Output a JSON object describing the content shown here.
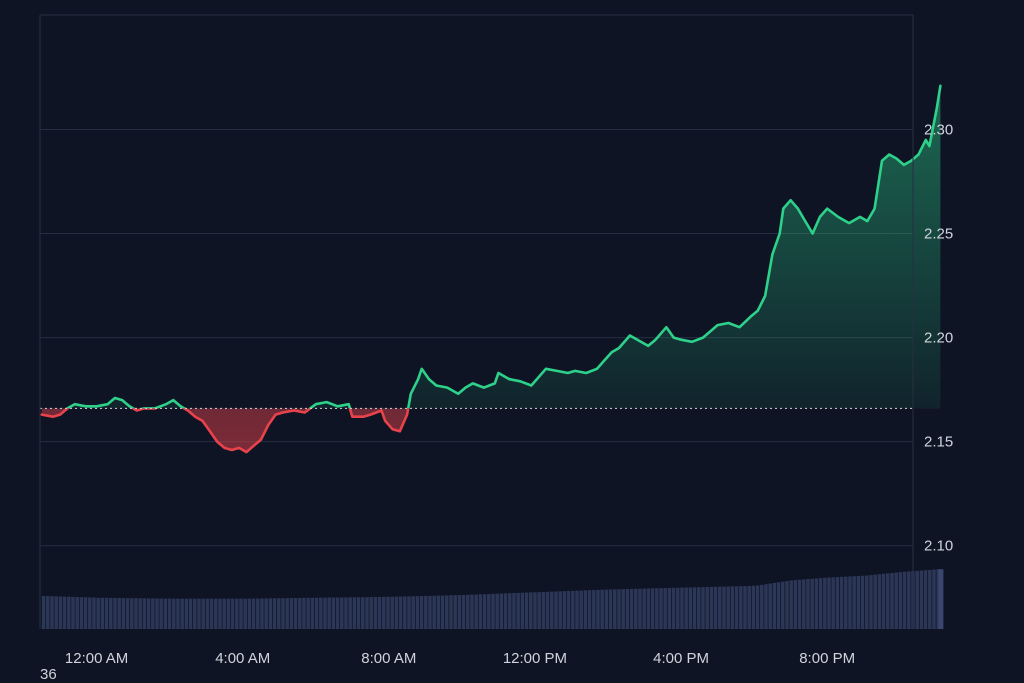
{
  "chart_data": {
    "type": "line",
    "title": "",
    "xlabel": "",
    "ylabel": "",
    "ylim": [
      2.06,
      2.355
    ],
    "y_ticks": [
      2.1,
      2.15,
      2.2,
      2.25,
      2.3
    ],
    "y_tick_labels": [
      "2.10",
      "2.15",
      "2.20",
      "2.25",
      "2.30"
    ],
    "x_ticks": [
      0,
      4,
      8,
      12,
      16,
      20
    ],
    "x_tick_labels": [
      "12:00 AM",
      "4:00 AM",
      "8:00 AM",
      "12:00 PM",
      "4:00 PM",
      "8:00 PM"
    ],
    "xlim": [
      -1.55,
      22.35
    ],
    "baseline": 2.166,
    "grid": true,
    "legend": "none",
    "colors": {
      "background": "#0e1424",
      "up": "#2ed18a",
      "down": "#e8434b",
      "volume": "#2c3656",
      "grid": "#262f42",
      "tick_text": "#cfd4dc"
    },
    "series": [
      {
        "values": [
          [
            -1.5,
            2.163
          ],
          [
            -1.2,
            2.162
          ],
          [
            -1.0,
            2.163
          ],
          [
            -0.8,
            2.166
          ],
          [
            -0.6,
            2.168
          ],
          [
            -0.3,
            2.167
          ],
          [
            0.0,
            2.167
          ],
          [
            0.3,
            2.168
          ],
          [
            0.5,
            2.171
          ],
          [
            0.7,
            2.17
          ],
          [
            0.9,
            2.167
          ],
          [
            1.1,
            2.165
          ],
          [
            1.3,
            2.166
          ],
          [
            1.6,
            2.166
          ],
          [
            1.9,
            2.168
          ],
          [
            2.1,
            2.17
          ],
          [
            2.3,
            2.167
          ],
          [
            2.5,
            2.165
          ],
          [
            2.7,
            2.162
          ],
          [
            2.9,
            2.16
          ],
          [
            3.1,
            2.155
          ],
          [
            3.3,
            2.15
          ],
          [
            3.5,
            2.147
          ],
          [
            3.7,
            2.146
          ],
          [
            3.9,
            2.147
          ],
          [
            4.1,
            2.145
          ],
          [
            4.3,
            2.148
          ],
          [
            4.5,
            2.151
          ],
          [
            4.7,
            2.158
          ],
          [
            4.9,
            2.163
          ],
          [
            5.1,
            2.164
          ],
          [
            5.4,
            2.165
          ],
          [
            5.7,
            2.164
          ],
          [
            6.0,
            2.168
          ],
          [
            6.3,
            2.169
          ],
          [
            6.6,
            2.167
          ],
          [
            6.9,
            2.168
          ],
          [
            7.0,
            2.162
          ],
          [
            7.3,
            2.162
          ],
          [
            7.5,
            2.163
          ],
          [
            7.8,
            2.165
          ],
          [
            7.9,
            2.16
          ],
          [
            8.1,
            2.156
          ],
          [
            8.3,
            2.155
          ],
          [
            8.5,
            2.163
          ],
          [
            8.6,
            2.173
          ],
          [
            8.8,
            2.18
          ],
          [
            8.9,
            2.185
          ],
          [
            9.1,
            2.18
          ],
          [
            9.3,
            2.177
          ],
          [
            9.6,
            2.176
          ],
          [
            9.9,
            2.173
          ],
          [
            10.1,
            2.176
          ],
          [
            10.3,
            2.178
          ],
          [
            10.6,
            2.176
          ],
          [
            10.9,
            2.178
          ],
          [
            11.0,
            2.183
          ],
          [
            11.3,
            2.18
          ],
          [
            11.6,
            2.179
          ],
          [
            11.9,
            2.177
          ],
          [
            12.1,
            2.181
          ],
          [
            12.3,
            2.185
          ],
          [
            12.6,
            2.184
          ],
          [
            12.9,
            2.183
          ],
          [
            13.1,
            2.184
          ],
          [
            13.4,
            2.183
          ],
          [
            13.7,
            2.185
          ],
          [
            13.9,
            2.189
          ],
          [
            14.1,
            2.193
          ],
          [
            14.3,
            2.195
          ],
          [
            14.6,
            2.201
          ],
          [
            14.9,
            2.198
          ],
          [
            15.1,
            2.196
          ],
          [
            15.3,
            2.199
          ],
          [
            15.6,
            2.205
          ],
          [
            15.8,
            2.2
          ],
          [
            16.0,
            2.199
          ],
          [
            16.3,
            2.198
          ],
          [
            16.6,
            2.2
          ],
          [
            16.8,
            2.203
          ],
          [
            17.0,
            2.206
          ],
          [
            17.3,
            2.207
          ],
          [
            17.6,
            2.205
          ],
          [
            17.9,
            2.21
          ],
          [
            18.1,
            2.213
          ],
          [
            18.3,
            2.22
          ],
          [
            18.5,
            2.24
          ],
          [
            18.7,
            2.25
          ],
          [
            18.8,
            2.262
          ],
          [
            19.0,
            2.266
          ],
          [
            19.2,
            2.262
          ],
          [
            19.4,
            2.256
          ],
          [
            19.6,
            2.25
          ],
          [
            19.8,
            2.258
          ],
          [
            20.0,
            2.262
          ],
          [
            20.3,
            2.258
          ],
          [
            20.6,
            2.255
          ],
          [
            20.9,
            2.258
          ],
          [
            21.1,
            2.256
          ],
          [
            21.3,
            2.262
          ],
          [
            21.5,
            2.285
          ],
          [
            21.7,
            2.288
          ],
          [
            21.9,
            2.286
          ],
          [
            22.1,
            2.283
          ],
          [
            22.3,
            2.285
          ],
          [
            22.5,
            2.288
          ],
          [
            22.7,
            2.295
          ],
          [
            22.8,
            2.292
          ],
          [
            23.0,
            2.31
          ],
          [
            23.1,
            2.321
          ]
        ]
      }
    ],
    "volume": {
      "values": [
        [
          -1.5,
          0.36
        ],
        [
          0.0,
          0.34
        ],
        [
          2.0,
          0.33
        ],
        [
          4.0,
          0.33
        ],
        [
          6.0,
          0.34
        ],
        [
          8.0,
          0.35
        ],
        [
          10.0,
          0.37
        ],
        [
          12.0,
          0.4
        ],
        [
          14.0,
          0.43
        ],
        [
          16.0,
          0.45
        ],
        [
          18.0,
          0.47
        ],
        [
          19.0,
          0.53
        ],
        [
          20.0,
          0.56
        ],
        [
          21.0,
          0.58
        ],
        [
          22.0,
          0.62
        ],
        [
          23.0,
          0.65
        ],
        [
          23.1,
          0.65
        ]
      ]
    }
  },
  "footer": {
    "corner_text": "36"
  }
}
